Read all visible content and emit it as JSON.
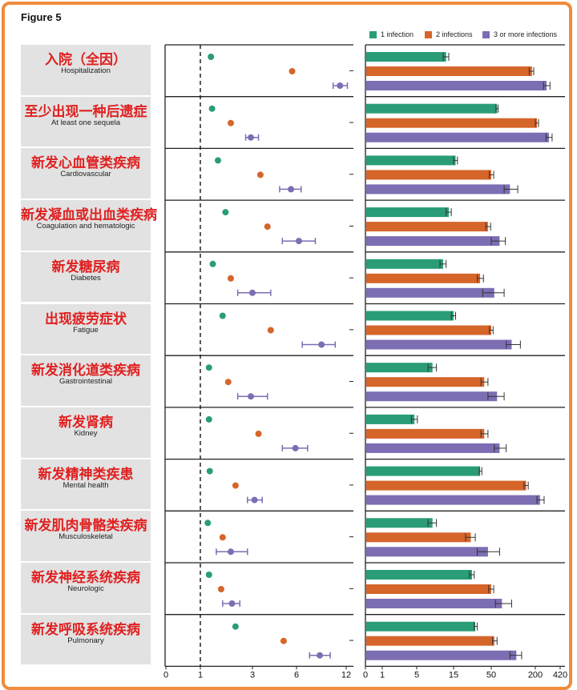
{
  "figure_title": "Figure 5",
  "legend": [
    {
      "label": "1 infection",
      "color": "#2a9d78"
    },
    {
      "label": "2 infections",
      "color": "#d6652a"
    },
    {
      "label": "3 or more infections",
      "color": "#7d6db3"
    }
  ],
  "chart_data": [
    {
      "type": "scatter",
      "title": "",
      "xlabel": "",
      "scale": "log",
      "xlim": [
        0,
        12
      ],
      "x_ticks": [
        "0",
        "1",
        "3",
        "6",
        "12"
      ],
      "reference_line": 1,
      "categories_zh": [
        "入院（全因）",
        "至少出现一种后遗症",
        "新发心血管类疾病",
        "新发凝血或出血类疾病",
        "新发糖尿病",
        "出现疲劳症状",
        "新发消化道类疾病",
        "新发肾病",
        "新发精神类疾患",
        "新发肌肉骨骼类疾病",
        "新发神经系统疾病",
        "新发呼吸系统疾病"
      ],
      "categories": [
        "Hospitalization",
        "At least one sequela",
        "Cardiovascular",
        "Coagulation and hematologic",
        "Diabetes",
        "Fatigue",
        "Gastrointestinal",
        "Kidney",
        "Mental health",
        "Musculoskeletal",
        "Neurologic",
        "Pulmonary"
      ],
      "series": [
        {
          "name": "1 infection",
          "values": [
            1.25,
            1.28,
            1.45,
            1.7,
            1.3,
            1.6,
            1.2,
            1.2,
            1.22,
            1.17,
            1.2,
            2.1
          ],
          "ci_low": [
            null,
            null,
            null,
            null,
            null,
            null,
            null,
            null,
            null,
            null,
            null,
            null
          ],
          "ci_high": [
            null,
            null,
            null,
            null,
            null,
            null,
            null,
            null,
            null,
            null,
            null,
            null
          ]
        },
        {
          "name": "2 infections",
          "values": [
            5.6,
            1.9,
            3.4,
            3.8,
            1.9,
            4.0,
            1.8,
            3.3,
            2.1,
            1.6,
            1.55,
            4.9
          ],
          "ci_low": [
            null,
            null,
            null,
            null,
            null,
            null,
            null,
            null,
            null,
            null,
            null,
            null
          ],
          "ci_high": [
            null,
            null,
            null,
            null,
            null,
            null,
            null,
            null,
            null,
            null,
            null,
            null
          ]
        },
        {
          "name": "3 or more infections",
          "values": [
            11.0,
            2.9,
            5.5,
            6.2,
            3.0,
            8.5,
            2.9,
            5.9,
            3.1,
            1.9,
            1.95,
            8.3
          ],
          "ci_low": [
            10.0,
            2.6,
            4.6,
            4.8,
            2.2,
            6.5,
            2.2,
            4.8,
            2.7,
            1.4,
            1.6,
            7.2
          ],
          "ci_high": [
            12.2,
            3.3,
            6.4,
            7.8,
            4.0,
            10.3,
            3.8,
            7.0,
            3.5,
            2.7,
            2.3,
            9.6
          ]
        }
      ]
    },
    {
      "type": "bar",
      "title": "",
      "xlabel": "",
      "scale": "log",
      "xlim": [
        0,
        420
      ],
      "x_ticks": [
        "0",
        "1",
        "5",
        "15",
        "50",
        "200",
        "420"
      ],
      "categories": [
        "Hospitalization",
        "At least one sequela",
        "Cardiovascular",
        "Coagulation and hematologic",
        "Diabetes",
        "Fatigue",
        "Gastrointestinal",
        "Kidney",
        "Mental health",
        "Musculoskeletal",
        "Neurologic",
        "Pulmonary"
      ],
      "series": [
        {
          "name": "1 infection",
          "values": [
            12,
            60,
            16,
            13,
            11,
            15,
            8,
            4.5,
            35,
            8,
            27,
            30
          ],
          "ci_low": [
            11,
            58,
            15,
            12,
            10,
            14,
            7,
            3.9,
            34,
            7,
            25,
            29
          ],
          "ci_high": [
            13,
            62,
            17,
            14,
            12,
            16,
            9,
            5.1,
            37,
            9,
            29,
            32
          ]
        },
        {
          "name": "2 infections",
          "values": [
            180,
            210,
            50,
            45,
            35,
            50,
            40,
            40,
            150,
            26,
            50,
            55
          ],
          "ci_low": [
            165,
            200,
            47,
            42,
            32,
            47,
            36,
            36,
            140,
            22,
            46,
            52
          ],
          "ci_high": [
            190,
            220,
            54,
            49,
            39,
            53,
            45,
            45,
            160,
            30,
            54,
            60
          ]
        },
        {
          "name": "3 or more infections",
          "values": [
            280,
            300,
            90,
            65,
            55,
            95,
            60,
            65,
            230,
            45,
            70,
            110
          ],
          "ci_low": [
            255,
            275,
            75,
            50,
            38,
            80,
            45,
            55,
            210,
            32,
            57,
            90
          ],
          "ci_high": [
            310,
            330,
            115,
            78,
            75,
            125,
            75,
            80,
            260,
            65,
            95,
            130
          ]
        }
      ]
    }
  ]
}
